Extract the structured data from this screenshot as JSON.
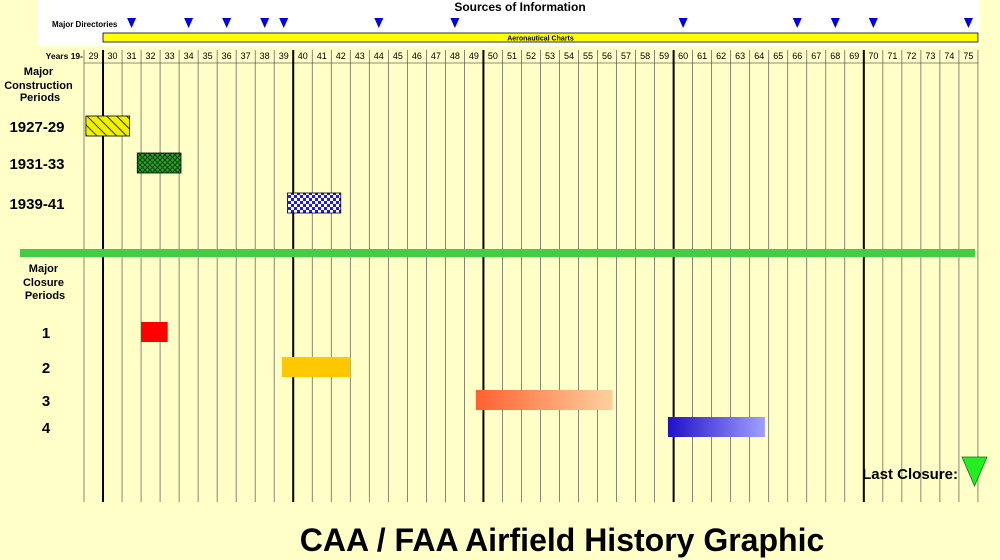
{
  "header": {
    "sources_title": "Sources of Information",
    "major_directories_label": "Major Directories",
    "aeronautical_charts_label": "Aeronautical Charts"
  },
  "axis": {
    "years_prefix": "Years 19-",
    "year_start": 29,
    "year_end": 75
  },
  "directory_years": [
    31,
    34,
    36,
    38,
    39,
    44,
    48,
    60,
    66,
    68,
    70,
    75
  ],
  "aeronautical_charts_range": [
    30,
    75
  ],
  "construction": {
    "heading": [
      "Major",
      "Construction",
      "Periods"
    ],
    "periods": [
      {
        "label": "1927-29",
        "start": 28.6,
        "end": 30.9,
        "pattern": "diagonal-hatch",
        "color": "#f0f000"
      },
      {
        "label": "1931-33",
        "start": 31.3,
        "end": 33.6,
        "pattern": "crosshatch",
        "color": "#22aa22"
      },
      {
        "label": "1939-41",
        "start": 39.2,
        "end": 42.0,
        "pattern": "checker",
        "color": "#1a1aee"
      }
    ]
  },
  "closure": {
    "heading": [
      "Major",
      "Closure",
      "Periods"
    ],
    "periods": [
      {
        "label": "1",
        "start": 31.5,
        "end": 32.9,
        "color": "#ff0000"
      },
      {
        "label": "2",
        "start": 38.9,
        "end": 42.5,
        "color": "#ffc800"
      },
      {
        "label": "3",
        "start": 49.1,
        "end": 56.3,
        "color_start": "#ff6030",
        "color_end": "#ffd0a0"
      },
      {
        "label": "4",
        "start": 59.2,
        "end": 64.3,
        "color_start": "#2010c8",
        "color_end": "#a0a0ff"
      }
    ]
  },
  "last_closure": {
    "label": "Last Closure:",
    "color": "#22ee22"
  },
  "separator_color": "#44cc44",
  "footer_title": "CAA / FAA Airfield History Graphic"
}
